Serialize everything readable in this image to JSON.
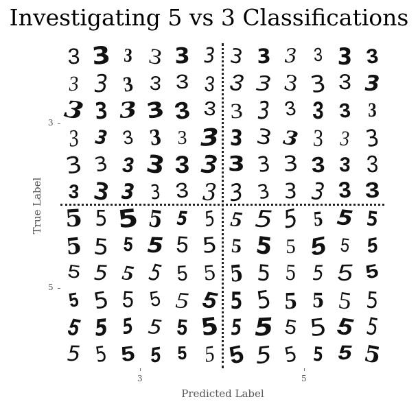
{
  "title": "Investigating 5 vs 3 Classifications",
  "xlabel": "Predicted Label",
  "ylabel": "True Label",
  "x_ticks": [
    "3",
    "5"
  ],
  "y_ticks": [
    "3",
    "5"
  ],
  "quadrants": [
    {
      "true_label": "3",
      "predicted_label": "3",
      "digit": "3",
      "count": 36
    },
    {
      "true_label": "3",
      "predicted_label": "5",
      "digit": "3",
      "count": 36
    },
    {
      "true_label": "5",
      "predicted_label": "3",
      "digit": "5",
      "count": 36
    },
    {
      "true_label": "5",
      "predicted_label": "5",
      "digit": "5",
      "count": 36
    }
  ]
}
